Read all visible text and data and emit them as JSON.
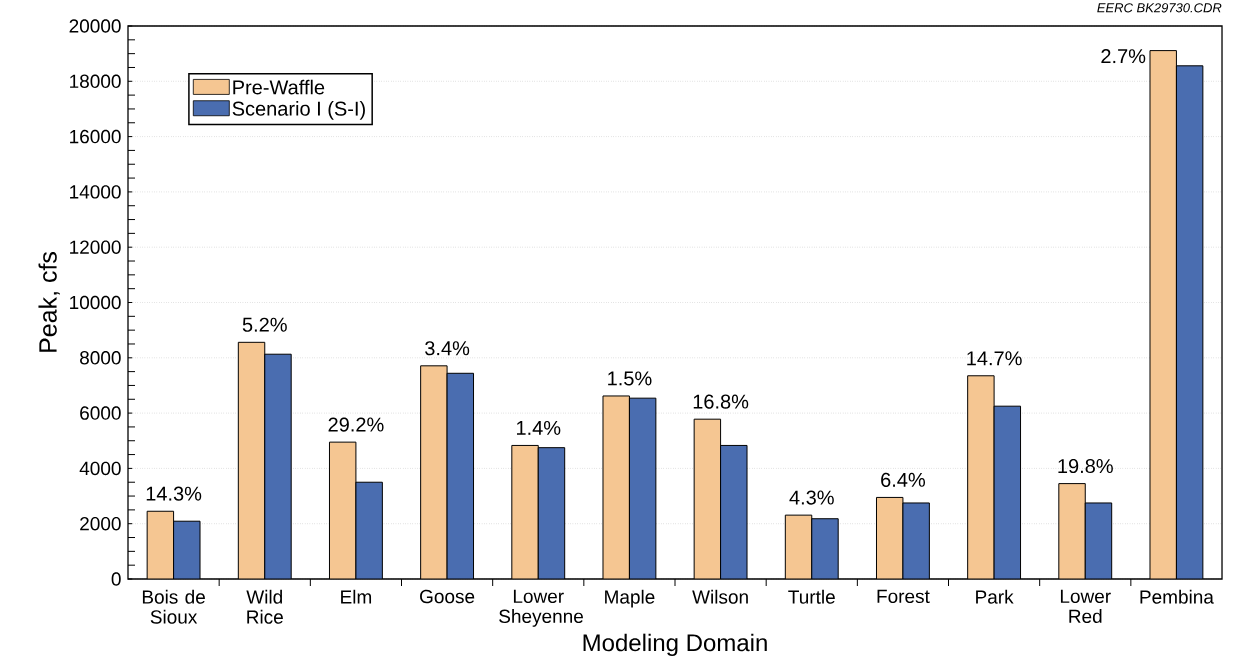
{
  "chart_data": {
    "type": "bar",
    "xlabel": "Modeling Domain",
    "ylabel": "Peak, cfs",
    "categories": [
      "Bois de Sioux",
      "Wild Rice",
      "Elm",
      "Goose",
      "Lower Sheyenne",
      "Maple",
      "Wilson",
      "Turtle",
      "Forest",
      "Park",
      "Lower Red",
      "Pembina"
    ],
    "series": [
      {
        "name": "Pre-Waffle",
        "color": "#f5c692",
        "values": [
          2450,
          8560,
          4950,
          7710,
          4830,
          6620,
          5780,
          2310,
          2950,
          7350,
          3450,
          19110
        ]
      },
      {
        "name": "Scenario I (S-I)",
        "color": "#4a6db0",
        "values": [
          2090,
          8130,
          3500,
          7440,
          4750,
          6540,
          4830,
          2180,
          2750,
          6250,
          2750,
          18560
        ]
      }
    ],
    "ylim": [
      0,
      20000
    ],
    "yticks": [
      0,
      2000,
      4000,
      6000,
      8000,
      10000,
      12000,
      14000,
      16000,
      18000,
      20000
    ],
    "grid": "y",
    "legend": "top left",
    "annotations": [
      {
        "text": "14.3%",
        "x": "Bois de Sioux",
        "y": 2450
      },
      {
        "text": "5.2%",
        "x": "Wild Rice",
        "y": 8560
      },
      {
        "text": "29.2%",
        "x": "Elm",
        "y": 4950
      },
      {
        "text": "3.4%",
        "x": "Goose",
        "y": 7710
      },
      {
        "text": "1.4%",
        "x": "Lower Sheyenne",
        "y": 4830
      },
      {
        "text": "1.5%",
        "x": "Maple",
        "y": 6620
      },
      {
        "text": "16.8%",
        "x": "Wilson",
        "y": 5780
      },
      {
        "text": "4.3%",
        "x": "Turtle",
        "y": 2310
      },
      {
        "text": "6.4%",
        "x": "Forest",
        "y": 2950
      },
      {
        "text": "14.7%",
        "x": "Park",
        "y": 7350
      },
      {
        "text": "19.8%",
        "x": "Lower Red",
        "y": 3450
      },
      {
        "text": "2.7%",
        "x": "Pembina",
        "y": 19110
      },
      "EERC BK29730.CDR"
    ]
  }
}
